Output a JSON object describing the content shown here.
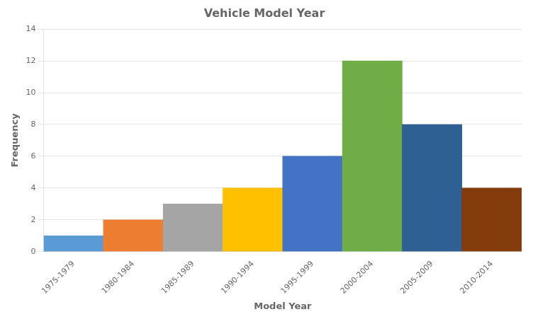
{
  "chart_data": {
    "type": "bar",
    "title": "Vehicle Model Year",
    "xlabel": "Model Year",
    "ylabel": "Frequency",
    "categories": [
      "1975-1979",
      "1980-1984",
      "1985-1989",
      "1990-1994",
      "1995-1999",
      "2000-2004",
      "2005-2009",
      "2010-2014"
    ],
    "values": [
      1,
      2,
      3,
      4,
      6,
      12,
      8,
      4
    ],
    "colors": [
      "#5B9BD5",
      "#ED7D31",
      "#A5A5A5",
      "#FFC000",
      "#4472C4",
      "#70AD47",
      "#2E6093",
      "#843C0C"
    ],
    "ylim": [
      0,
      14
    ],
    "yticks": [
      0,
      2,
      4,
      6,
      8,
      10,
      12,
      14
    ],
    "grid": true
  }
}
